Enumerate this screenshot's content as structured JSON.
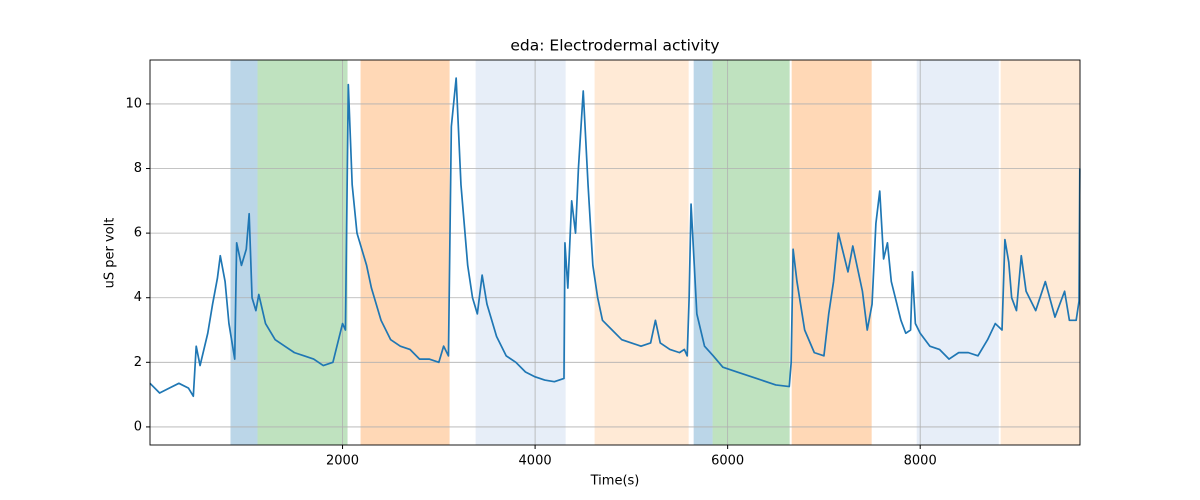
{
  "chart_data": {
    "type": "line",
    "title": "eda: Electrodermal activity",
    "x_label": "Time(s)",
    "y_label": "uS per volt",
    "xlim": [
      0,
      9660
    ],
    "ylim": [
      -0.56,
      11.36
    ],
    "xticks": [
      2000,
      4000,
      6000,
      8000
    ],
    "yticks": [
      0,
      2,
      4,
      6,
      8,
      10
    ],
    "grid": true,
    "span_alpha": 0.3,
    "spans": [
      {
        "start": 836,
        "end": 1117,
        "color": "#1f77b4"
      },
      {
        "start": 1117,
        "end": 2052,
        "color": "#2ca02c"
      },
      {
        "start": 2187,
        "end": 3112,
        "color": "#ff7f0e"
      },
      {
        "start": 3382,
        "end": 4317,
        "color": "#aec7e8"
      },
      {
        "start": 4618,
        "end": 5595,
        "color": "#ffbb78"
      },
      {
        "start": 5647,
        "end": 5844,
        "color": "#1f77b4"
      },
      {
        "start": 5844,
        "end": 6644,
        "color": "#2ca02c"
      },
      {
        "start": 6665,
        "end": 7496,
        "color": "#ff7f0e"
      },
      {
        "start": 7964,
        "end": 8816,
        "color": "#aec7e8"
      },
      {
        "start": 8836,
        "end": 9660,
        "color": "#ffbb78"
      }
    ],
    "x": [
      0,
      100,
      200,
      300,
      400,
      450,
      480,
      520,
      600,
      650,
      700,
      730,
      780,
      820,
      880,
      900,
      950,
      1000,
      1030,
      1060,
      1100,
      1130,
      1200,
      1300,
      1400,
      1500,
      1600,
      1700,
      1800,
      1900,
      1950,
      2000,
      2030,
      2060,
      2100,
      2150,
      2200,
      2250,
      2300,
      2400,
      2500,
      2600,
      2700,
      2800,
      2900,
      3000,
      3050,
      3100,
      3130,
      3180,
      3230,
      3300,
      3350,
      3400,
      3450,
      3500,
      3600,
      3700,
      3800,
      3900,
      4000,
      4100,
      4200,
      4300,
      4310,
      4340,
      4380,
      4420,
      4450,
      4500,
      4550,
      4600,
      4650,
      4700,
      4800,
      4900,
      5000,
      5100,
      5200,
      5250,
      5300,
      5400,
      5500,
      5550,
      5580,
      5600,
      5620,
      5680,
      5760,
      5850,
      5950,
      6100,
      6300,
      6500,
      6640,
      6660,
      6680,
      6720,
      6800,
      6900,
      7000,
      7050,
      7100,
      7150,
      7200,
      7250,
      7300,
      7400,
      7450,
      7500,
      7540,
      7580,
      7620,
      7660,
      7700,
      7750,
      7800,
      7850,
      7900,
      7920,
      7950,
      8000,
      8100,
      8200,
      8300,
      8400,
      8500,
      8600,
      8700,
      8780,
      8850,
      8880,
      8920,
      8950,
      9000,
      9050,
      9100,
      9200,
      9300,
      9400,
      9500,
      9550,
      9620,
      9650,
      9658
    ],
    "series": [
      {
        "color": "#1f77b4",
        "values": [
          1.35,
          1.05,
          1.2,
          1.35,
          1.2,
          0.95,
          2.5,
          1.9,
          2.9,
          3.8,
          4.6,
          5.3,
          4.5,
          3.2,
          2.1,
          5.7,
          5.0,
          5.5,
          6.6,
          4.0,
          3.6,
          4.1,
          3.2,
          2.7,
          2.5,
          2.3,
          2.2,
          2.1,
          1.9,
          2.0,
          2.6,
          3.2,
          3.0,
          10.6,
          7.5,
          6.0,
          5.5,
          5.0,
          4.3,
          3.3,
          2.7,
          2.5,
          2.4,
          2.1,
          2.1,
          2.0,
          2.5,
          2.2,
          9.3,
          10.8,
          7.5,
          5.0,
          4.0,
          3.5,
          4.7,
          3.8,
          2.8,
          2.2,
          2.0,
          1.7,
          1.55,
          1.45,
          1.4,
          1.5,
          5.7,
          4.3,
          7.0,
          6.0,
          8.0,
          10.4,
          7.5,
          5.0,
          4.0,
          3.3,
          3.0,
          2.7,
          2.6,
          2.5,
          2.6,
          3.3,
          2.6,
          2.4,
          2.3,
          2.4,
          2.2,
          4.0,
          6.9,
          3.5,
          2.5,
          2.2,
          1.85,
          1.7,
          1.5,
          1.3,
          1.25,
          2.0,
          5.5,
          4.5,
          3.0,
          2.3,
          2.2,
          3.5,
          4.5,
          6.0,
          5.4,
          4.8,
          5.6,
          4.2,
          3.0,
          3.8,
          6.3,
          7.3,
          5.2,
          5.7,
          4.5,
          3.9,
          3.3,
          2.9,
          3.0,
          4.8,
          3.2,
          2.9,
          2.5,
          2.4,
          2.1,
          2.3,
          2.3,
          2.2,
          2.7,
          3.2,
          3.0,
          5.8,
          5.1,
          4.0,
          3.6,
          5.3,
          4.2,
          3.6,
          4.5,
          3.4,
          4.2,
          3.3,
          3.3,
          3.9,
          8.0
        ]
      }
    ]
  }
}
